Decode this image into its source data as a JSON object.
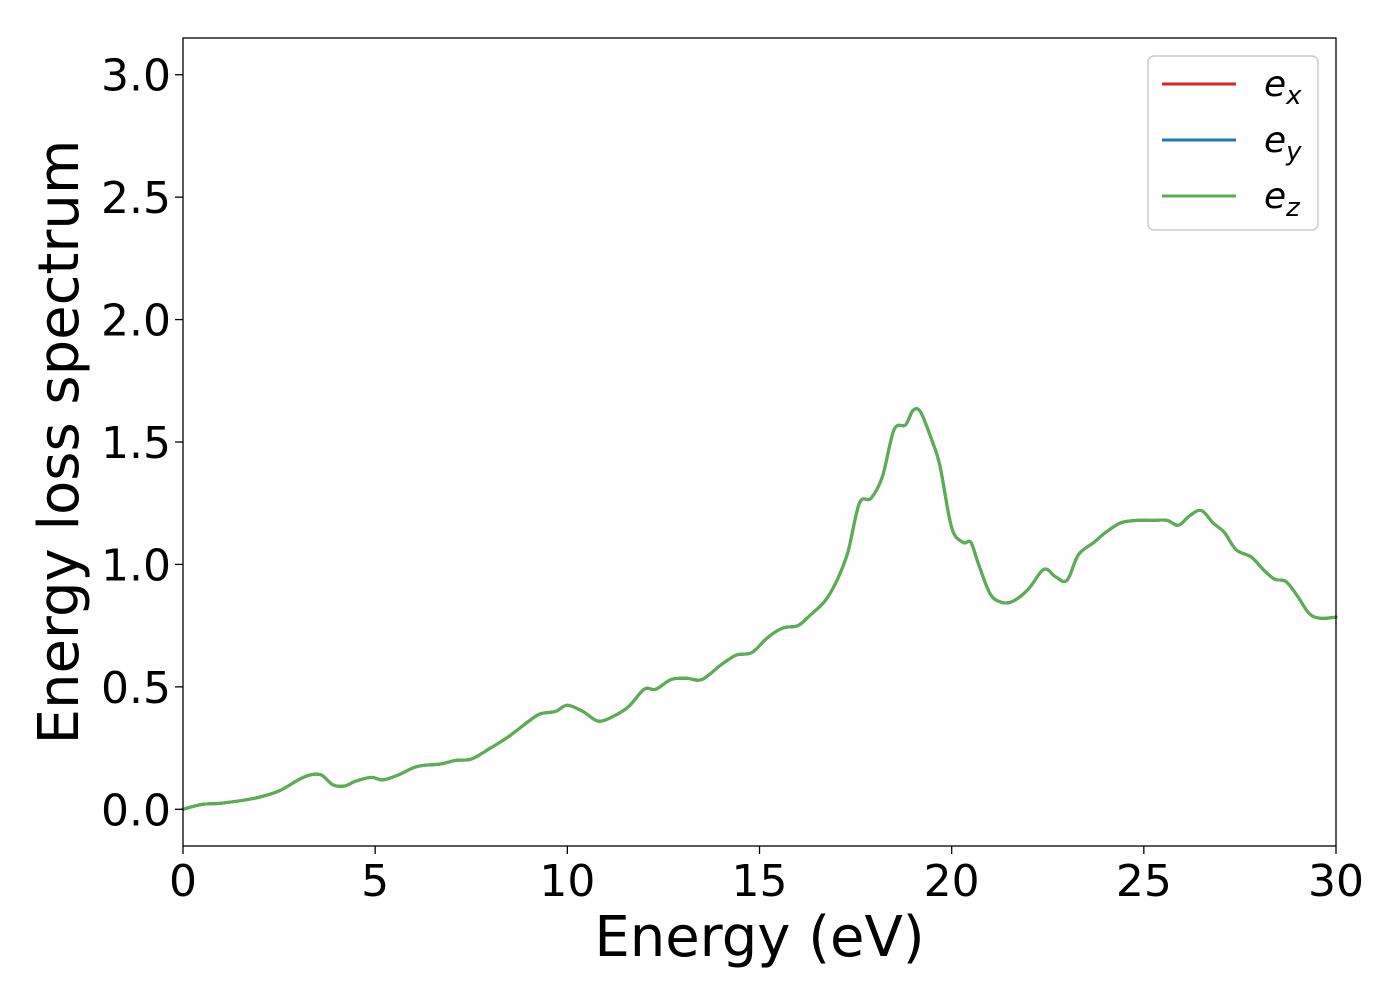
{
  "chart_data": {
    "type": "line",
    "title": "",
    "xlabel": "Energy (eV)",
    "ylabel": "Energy loss spectrum",
    "xlim": [
      0,
      30
    ],
    "ylim": [
      -0.15,
      3.15
    ],
    "xticks": [
      0,
      5,
      10,
      15,
      20,
      25,
      30
    ],
    "xtick_labels": [
      "0",
      "5",
      "10",
      "15",
      "20",
      "25",
      "30"
    ],
    "yticks": [
      0.0,
      0.5,
      1.0,
      1.5,
      2.0,
      2.5,
      3.0
    ],
    "ytick_labels": [
      "0.0",
      "0.5",
      "1.0",
      "1.5",
      "2.0",
      "2.5",
      "3.0"
    ],
    "grid": false,
    "legend_position": "top-right",
    "x": [
      0,
      0.5,
      1.0,
      1.5,
      2.0,
      2.5,
      3.0,
      3.3,
      3.6,
      3.9,
      4.2,
      4.5,
      4.9,
      5.2,
      5.6,
      6.0,
      6.3,
      6.7,
      7.1,
      7.5,
      8.0,
      8.5,
      9.0,
      9.3,
      9.7,
      10.0,
      10.4,
      10.8,
      11.2,
      11.6,
      12.0,
      12.3,
      12.7,
      13.1,
      13.5,
      14.0,
      14.4,
      14.8,
      15.2,
      15.6,
      16.0,
      16.3,
      16.7,
      17.0,
      17.3,
      17.6,
      17.9,
      18.2,
      18.5,
      18.8,
      19.0,
      19.2,
      19.5,
      19.7,
      20.0,
      20.3,
      20.5,
      20.7,
      21.0,
      21.3,
      21.6,
      22.0,
      22.4,
      22.7,
      23.0,
      23.3,
      23.7,
      24.0,
      24.4,
      24.8,
      25.2,
      25.6,
      25.9,
      26.2,
      26.5,
      26.8,
      27.1,
      27.4,
      27.8,
      28.1,
      28.4,
      28.7,
      29.0,
      29.3,
      29.6,
      30.0
    ],
    "series": [
      {
        "name": "e_x",
        "legend_base": "e",
        "legend_sub": "x",
        "color": "#d62728",
        "values": [
          0.0,
          0.02,
          0.025,
          0.035,
          0.05,
          0.075,
          0.12,
          0.14,
          0.14,
          0.1,
          0.095,
          0.115,
          0.13,
          0.12,
          0.14,
          0.17,
          0.18,
          0.185,
          0.2,
          0.205,
          0.25,
          0.3,
          0.36,
          0.39,
          0.4,
          0.425,
          0.4,
          0.36,
          0.38,
          0.42,
          0.49,
          0.49,
          0.53,
          0.535,
          0.53,
          0.59,
          0.63,
          0.64,
          0.7,
          0.74,
          0.75,
          0.79,
          0.85,
          0.93,
          1.05,
          1.25,
          1.27,
          1.36,
          1.55,
          1.57,
          1.63,
          1.62,
          1.5,
          1.4,
          1.15,
          1.09,
          1.09,
          1.0,
          0.88,
          0.845,
          0.85,
          0.9,
          0.98,
          0.95,
          0.935,
          1.04,
          1.09,
          1.13,
          1.17,
          1.18,
          1.18,
          1.18,
          1.16,
          1.2,
          1.22,
          1.17,
          1.13,
          1.06,
          1.03,
          0.98,
          0.94,
          0.93,
          0.87,
          0.8,
          0.78,
          0.785
        ]
      },
      {
        "name": "e_y",
        "legend_base": "e",
        "legend_sub": "y",
        "color": "#1f77b4",
        "values": [
          0.0,
          0.02,
          0.025,
          0.035,
          0.05,
          0.075,
          0.12,
          0.14,
          0.14,
          0.1,
          0.095,
          0.115,
          0.13,
          0.12,
          0.14,
          0.17,
          0.18,
          0.185,
          0.2,
          0.205,
          0.25,
          0.3,
          0.36,
          0.39,
          0.4,
          0.425,
          0.4,
          0.36,
          0.38,
          0.42,
          0.49,
          0.49,
          0.53,
          0.535,
          0.53,
          0.59,
          0.63,
          0.64,
          0.7,
          0.74,
          0.75,
          0.79,
          0.85,
          0.93,
          1.05,
          1.25,
          1.27,
          1.36,
          1.55,
          1.57,
          1.63,
          1.62,
          1.5,
          1.4,
          1.15,
          1.09,
          1.09,
          1.0,
          0.88,
          0.845,
          0.85,
          0.9,
          0.98,
          0.95,
          0.935,
          1.04,
          1.09,
          1.13,
          1.17,
          1.18,
          1.18,
          1.18,
          1.16,
          1.2,
          1.22,
          1.17,
          1.13,
          1.06,
          1.03,
          0.98,
          0.94,
          0.93,
          0.87,
          0.8,
          0.78,
          0.785
        ]
      },
      {
        "name": "e_z",
        "legend_base": "e",
        "legend_sub": "z",
        "color": "#5aaf50",
        "values": [
          0.0,
          0.02,
          0.025,
          0.035,
          0.05,
          0.075,
          0.12,
          0.14,
          0.14,
          0.1,
          0.095,
          0.115,
          0.13,
          0.12,
          0.14,
          0.17,
          0.18,
          0.185,
          0.2,
          0.205,
          0.25,
          0.3,
          0.36,
          0.39,
          0.4,
          0.425,
          0.4,
          0.36,
          0.38,
          0.42,
          0.49,
          0.49,
          0.53,
          0.535,
          0.53,
          0.59,
          0.63,
          0.64,
          0.7,
          0.74,
          0.75,
          0.79,
          0.85,
          0.93,
          1.05,
          1.25,
          1.27,
          1.36,
          1.55,
          1.57,
          1.63,
          1.62,
          1.5,
          1.4,
          1.15,
          1.09,
          1.09,
          1.0,
          0.88,
          0.845,
          0.85,
          0.9,
          0.98,
          0.95,
          0.935,
          1.04,
          1.09,
          1.13,
          1.17,
          1.18,
          1.18,
          1.18,
          1.16,
          1.2,
          1.22,
          1.17,
          1.13,
          1.06,
          1.03,
          0.98,
          0.94,
          0.93,
          0.87,
          0.8,
          0.78,
          0.785
        ]
      }
    ]
  }
}
